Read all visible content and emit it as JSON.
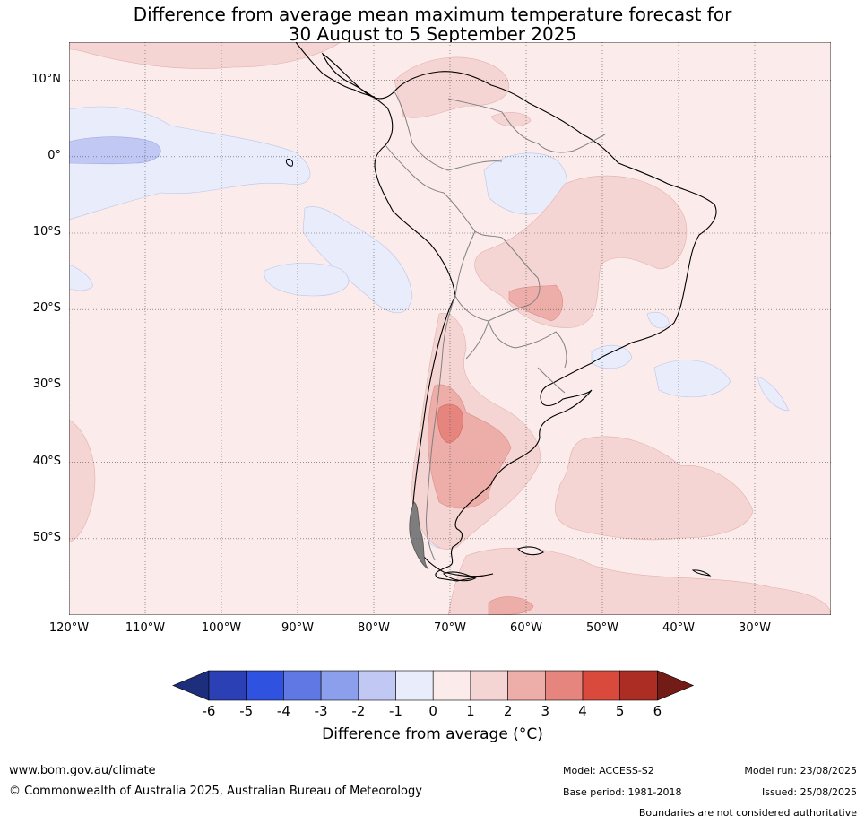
{
  "title": {
    "line1": "Difference from average mean maximum temperature forecast for",
    "line2": "30 August to 5 September 2025"
  },
  "map": {
    "region": "South America",
    "projection": "equirectangular",
    "lon_range": [
      -120,
      -20
    ],
    "lat_range": [
      -60,
      15
    ],
    "lat_labels": [
      "10°N",
      "0°",
      "10°S",
      "20°S",
      "30°S",
      "40°S",
      "50°S"
    ],
    "lat_values": [
      10,
      0,
      -10,
      -20,
      -30,
      -40,
      -50
    ],
    "lon_labels": [
      "120°W",
      "110°W",
      "100°W",
      "90°W",
      "80°W",
      "70°W",
      "60°W",
      "50°W",
      "40°W",
      "30°W"
    ],
    "lon_values": [
      -120,
      -110,
      -100,
      -90,
      -80,
      -70,
      -60,
      -50,
      -40,
      -30
    ],
    "gridlines": true,
    "background_category": "0 to 1",
    "anomaly_regions": [
      {
        "area": "Eastern Pacific near the equator",
        "category": "-1 to 0"
      },
      {
        "area": "Equatorial core near 110-120°W",
        "category": "-2 to -1"
      },
      {
        "area": "Northern Andes / Venezuela",
        "category": "1 to 2"
      },
      {
        "area": "Central Brazil and Bolivia",
        "category": "1 to 2"
      },
      {
        "area": "Paraguay / Mato Grosso",
        "category": "2 to 3"
      },
      {
        "area": "Central Argentina and Patagonia",
        "category": "2 to 3"
      },
      {
        "area": "Andes near 35°S",
        "category": "3 to 4"
      },
      {
        "area": "Amazon basin",
        "category": "-1 to 0"
      },
      {
        "area": "South Atlantic off southern Brazil",
        "category": "-1 to 0"
      },
      {
        "area": "South Atlantic near 40-50°S",
        "category": "1 to 2"
      }
    ]
  },
  "colorbar": {
    "ticks": [
      "-6",
      "-5",
      "-4",
      "-3",
      "-2",
      "-1",
      "0",
      "1",
      "2",
      "3",
      "4",
      "5",
      "6"
    ],
    "colors": [
      "#1d2e7c",
      "#2b40b4",
      "#3052e0",
      "#5f78e4",
      "#8c9fec",
      "#c1c8f3",
      "#e8ecfb",
      "#fbeceb",
      "#f5d5d3",
      "#edada8",
      "#e6857e",
      "#d94a3d",
      "#ab2d23",
      "#731c17"
    ],
    "label": "Difference from average (",
    "label_unit": "°C",
    "label_close": ")"
  },
  "footer": {
    "url": "www.bom.gov.au/climate",
    "copyright": "© Commonwealth of Australia 2025, Australian Bureau of Meteorology",
    "model": "Model: ACCESS-S2",
    "base_period": "Base period: 1981-2018",
    "model_run": "Model run: 23/08/2025",
    "issued": "Issued: 25/08/2025",
    "disclaimer": "Boundaries are not considered authoritative"
  }
}
